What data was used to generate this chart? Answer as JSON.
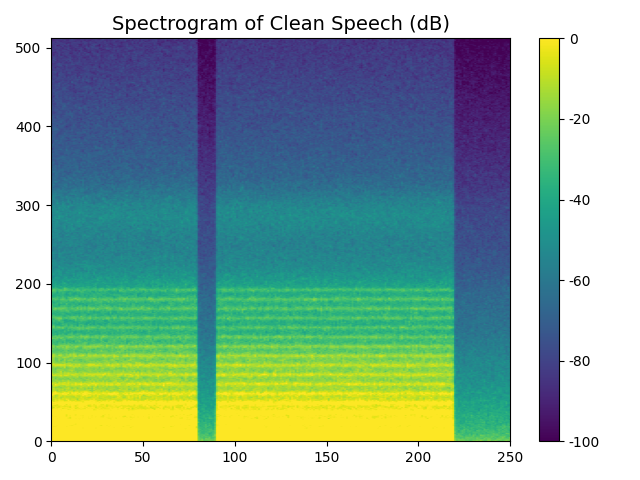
{
  "title": "Spectrogram of Clean Speech (dB)",
  "cmap": "viridis",
  "vmin": -100,
  "vmax": 0,
  "colorbar_ticks": [
    0,
    -20,
    -40,
    -60,
    -80,
    -100
  ],
  "seed": 42,
  "n_time": 256,
  "n_freq": 513,
  "title_fontsize": 14,
  "xticks": [
    0,
    50,
    100,
    150,
    200,
    250
  ],
  "yticks": [
    0,
    100,
    200,
    300,
    400,
    500
  ]
}
